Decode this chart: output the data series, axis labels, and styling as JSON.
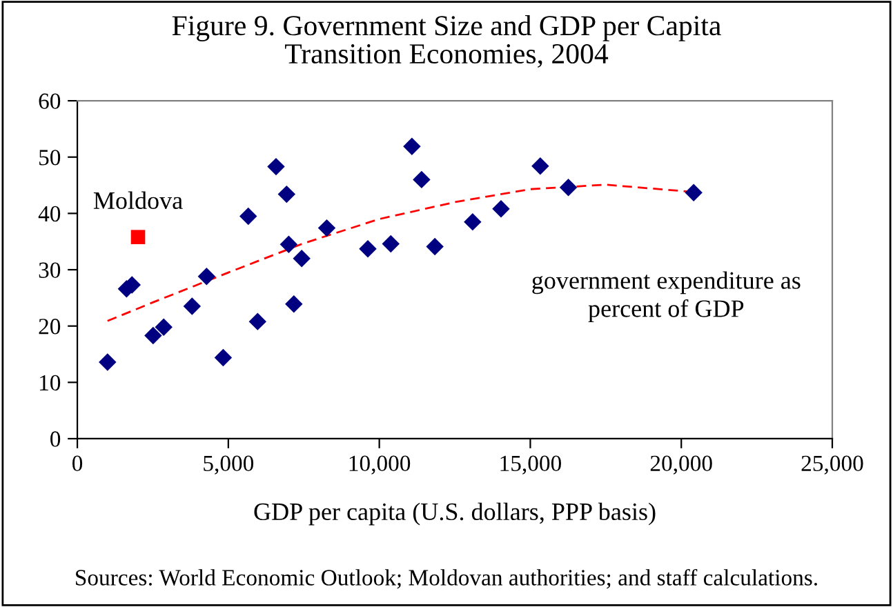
{
  "chart_data": {
    "type": "scatter",
    "title": "Figure 9. Government Size and GDP per Capita\nTransition Economies, 2004",
    "xlabel": "GDP per capita (U.S. dollars, PPP basis)",
    "xlim": [
      0,
      25000
    ],
    "ylim": [
      0,
      60
    ],
    "xticks": [
      0,
      {
        "value": 5000,
        "label": "5,000"
      },
      {
        "value": 10000,
        "label": "10,000"
      },
      {
        "value": 15000,
        "label": "15,000"
      },
      {
        "value": 20000,
        "label": "20,000"
      },
      {
        "value": 25000,
        "label": "25,000"
      }
    ],
    "yticks": [
      0,
      10,
      20,
      30,
      40,
      50,
      60
    ],
    "grid": false,
    "legend": false,
    "series": [
      {
        "color": "#000080",
        "marker": "diamond",
        "x": [
          1000,
          1630,
          1810,
          2510,
          2860,
          3800,
          4280,
          4830,
          5660,
          5970,
          6580,
          6930,
          7000,
          7170,
          7430,
          8260,
          9620,
          10380,
          11080,
          11400,
          11840,
          13090,
          14030,
          15330,
          16260,
          20410
        ],
        "values": [
          13.6,
          26.6,
          27.3,
          18.3,
          19.8,
          23.5,
          28.8,
          14.4,
          39.5,
          20.8,
          48.3,
          43.4,
          34.5,
          23.9,
          32.0,
          37.4,
          33.7,
          34.6,
          51.9,
          46.0,
          34.1,
          38.5,
          40.8,
          48.4,
          44.6,
          43.7
        ]
      },
      {
        "color": "#ff0000",
        "marker": "square",
        "x": [
          2010
        ],
        "values": [
          35.8
        ]
      },
      {
        "type": "line",
        "color": "#ff0000",
        "line_style": "dashed",
        "marker": "none",
        "x": [
          1000,
          2500,
          5000,
          7500,
          10000,
          12500,
          15000,
          17500,
          20400
        ],
        "values": [
          20.9,
          24.2,
          29.5,
          34.7,
          39.0,
          42.0,
          44.3,
          45.1,
          43.8
        ]
      }
    ],
    "annotations": [
      {
        "text": "Moldova",
        "x": 2010,
        "y": 35.8
      },
      "government expenditure as\npercent of GDP",
      "Sources: World Economic Outlook; Moldovan authorities; and staff calculations."
    ]
  }
}
